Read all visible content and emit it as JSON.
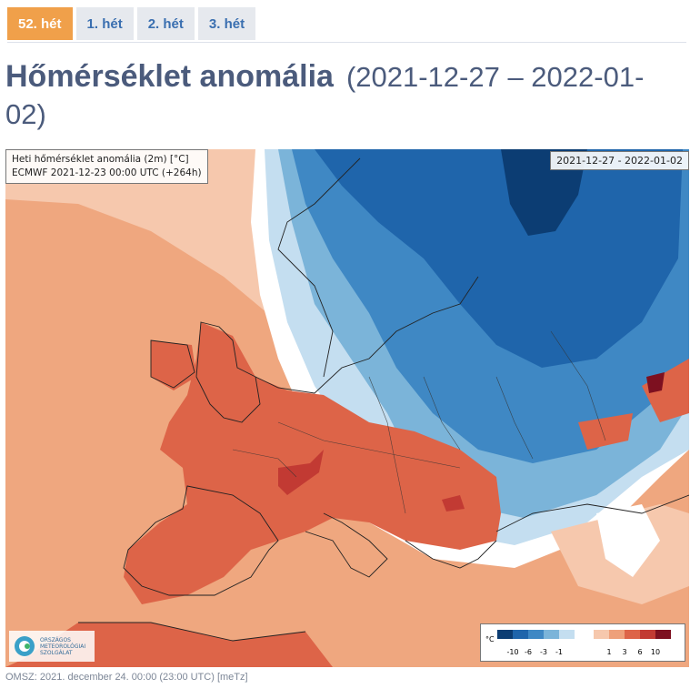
{
  "tabs": [
    {
      "label": "52. hét",
      "active": true
    },
    {
      "label": "1. hét",
      "active": false
    },
    {
      "label": "2. hét",
      "active": false
    },
    {
      "label": "3. hét",
      "active": false
    }
  ],
  "title": {
    "main": "Hőmérséklet anomália",
    "range": "(2021-12-27 – 2022-01-02)"
  },
  "map": {
    "info_line1": "Heti hőmérséklet anomália (2m) [°C]",
    "info_line2": "ECMWF 2021-12-23 00:00 UTC (+264h)",
    "date_range": "2021-12-27 - 2022-01-02",
    "logo_text": [
      "ORSZÁGOS",
      "METEOROLÓGIAI",
      "SZOLGÁLAT"
    ],
    "legend": {
      "unit": "°C",
      "cold_labels": [
        "-10",
        "-6",
        "-3",
        "-1"
      ],
      "warm_labels": [
        "1",
        "3",
        "6",
        "10"
      ],
      "cold_colors": [
        "#0c3d73",
        "#1f65ab",
        "#3f88c4",
        "#7bb4d9",
        "#c4def0"
      ],
      "warm_colors": [
        "#f6c8ad",
        "#eea07a",
        "#dd6448",
        "#c23a33",
        "#7d1020"
      ]
    }
  },
  "footer": "OMSZ: 2021. december 24. 00:00 (23:00  UTC)  [meTz]"
}
